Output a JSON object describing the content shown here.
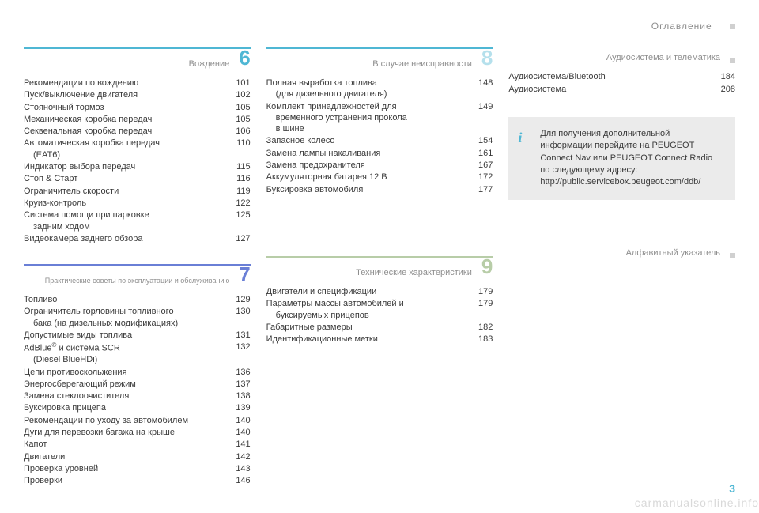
{
  "header": {
    "title": "Оглавление"
  },
  "page_number": "3",
  "watermark": "carmanualsonline.info",
  "info_box": {
    "text": "Для получения дополнительной информации перейдите на PEUGEOT Connect Nav или PEUGEOT Connect Radio по следующему адресу: http://public.servicebox.peugeot.com/ddb/"
  },
  "s6": {
    "num": "6",
    "title": "Вождение",
    "color": "#4fb7d4",
    "num_color": "#4fb7d4",
    "items": [
      {
        "label": "Рекомендации по вождению",
        "page": "101"
      },
      {
        "label": "Пуск/выключение двигателя",
        "page": "102"
      },
      {
        "label": "Стояночный тормоз",
        "page": "105"
      },
      {
        "label": "Механическая коробка передач",
        "page": "105"
      },
      {
        "label": "Секвенальная коробка передач",
        "page": "106"
      },
      {
        "label": "Автоматическая коробка передач",
        "sub": "(EAT6)",
        "page": "110"
      },
      {
        "label": "Индикатор выбора передач",
        "page": "115"
      },
      {
        "label": "Стоп & Старт",
        "page": "116"
      },
      {
        "label": "Ограничитель скорости",
        "page": "119"
      },
      {
        "label": "Круиз-контроль",
        "page": "122"
      },
      {
        "label": "Система помощи при парковке",
        "sub": "задним ходом",
        "page": "125"
      },
      {
        "label": "Видеокамера заднего обзора",
        "page": "127"
      }
    ]
  },
  "s7": {
    "num": "7",
    "title": "Практические советы по эксплуатации и обслуживанию",
    "color": "#6a7fd6",
    "num_color": "#6a7fd6",
    "items": [
      {
        "label": "Топливо",
        "page": "129"
      },
      {
        "label": "Ограничитель горловины топливного",
        "sub": "бака (на дизельных модификациях)",
        "page": "130"
      },
      {
        "label": "Допустимые виды топлива",
        "page": "131"
      },
      {
        "label_html": "AdBlue<span class=\"sup\">®</span> и система SCR",
        "sub": "(Diesel BlueHDi)",
        "page": "132"
      },
      {
        "label": "Цепи противоскольжения",
        "page": "136"
      },
      {
        "label": "Энергосберегающий режим",
        "page": "137"
      },
      {
        "label": "Замена стеклоочистителя",
        "page": "138"
      },
      {
        "label": "Буксировка прицепа",
        "page": "139"
      },
      {
        "label": "Рекомендации по уходу за автомобилем",
        "page": "140"
      },
      {
        "label": "Дуги для перевозки багажа на крыше",
        "page": "140"
      },
      {
        "label": "Капот",
        "page": "141"
      },
      {
        "label": "Двигатели",
        "page": "142"
      },
      {
        "label": "Проверка уровней",
        "page": "143"
      },
      {
        "label": "Проверки",
        "page": "146"
      }
    ]
  },
  "s8": {
    "num": "8",
    "title": "В случае неисправности",
    "color": "#4fb7d4",
    "num_color": "#b5e0ec",
    "items": [
      {
        "label": "Полная выработка топлива",
        "sub": "(для дизельного двигателя)",
        "page": "148"
      },
      {
        "label": "Комплект принадлежностей для",
        "sub": "временного устранения прокола",
        "sub2": "в шине",
        "page": "149"
      },
      {
        "label": "Запасное колесо",
        "page": "154"
      },
      {
        "label": "Замена лампы накаливания",
        "page": "161"
      },
      {
        "label": "Замена предохранителя",
        "page": "167"
      },
      {
        "label": "Аккумуляторная батарея 12 В",
        "page": "172"
      },
      {
        "label": "Буксировка автомобиля",
        "page": "177"
      }
    ]
  },
  "s9": {
    "num": "9",
    "title": "Технические характеристики",
    "color": "#b8cda8",
    "num_color": "#b8cda8",
    "items": [
      {
        "label": "Двигатели и спецификации",
        "page": "179"
      },
      {
        "label": "Параметры массы автомобилей и",
        "sub": "буксируемых прицепов",
        "page": "179"
      },
      {
        "label": "Габаритные размеры",
        "page": "182"
      },
      {
        "label": "Идентификационные метки",
        "page": "183"
      }
    ]
  },
  "s_audio": {
    "title": "Аудиосистема и телематика",
    "items": [
      {
        "label": "Аудиосистема/Bluetooth",
        "page": "184"
      },
      {
        "label": "Аудиосистема",
        "page": "208"
      }
    ]
  },
  "s_index": {
    "title": "Алфавитный указатель"
  }
}
